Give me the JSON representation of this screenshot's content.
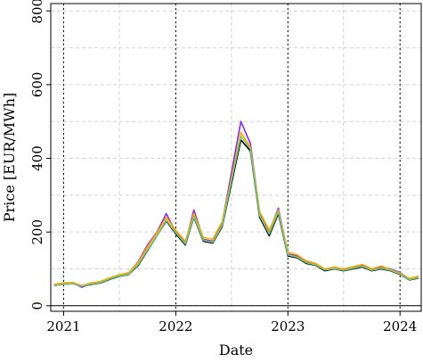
{
  "chart_data": {
    "type": "line",
    "xlabel": "Date",
    "ylabel": "Price [EUR/MWh]",
    "x_range": [
      "2020-11-20",
      "2024-03-10"
    ],
    "ylim": [
      -15,
      820
    ],
    "x_ticks": [
      {
        "date": "2021-01-01",
        "label": "2021"
      },
      {
        "date": "2022-01-01",
        "label": "2022"
      },
      {
        "date": "2023-01-01",
        "label": "2023"
      },
      {
        "date": "2024-01-01",
        "label": "2024"
      }
    ],
    "y_ticks": [
      {
        "value": 0,
        "label": "0"
      },
      {
        "value": 200,
        "label": "200"
      },
      {
        "value": 400,
        "label": "400"
      },
      {
        "value": 600,
        "label": "600"
      },
      {
        "value": 800,
        "label": "800"
      }
    ],
    "grid": true,
    "year_markers": [
      "2021-01-01",
      "2022-01-01",
      "2023-01-01",
      "2024-01-01"
    ],
    "zero_line": true,
    "series": [
      {
        "color": "#000000",
        "points": [
          [
            "2020-12-01",
            55
          ],
          [
            "2021-01-01",
            58
          ],
          [
            "2021-02-01",
            60
          ],
          [
            "2021-03-01",
            52
          ],
          [
            "2021-04-01",
            58
          ],
          [
            "2021-05-01",
            62
          ],
          [
            "2021-06-01",
            72
          ],
          [
            "2021-07-01",
            80
          ],
          [
            "2021-08-01",
            85
          ],
          [
            "2021-09-01",
            110
          ],
          [
            "2021-10-01",
            150
          ],
          [
            "2021-11-01",
            190
          ],
          [
            "2021-12-01",
            230
          ],
          [
            "2022-01-01",
            195
          ],
          [
            "2022-02-01",
            165
          ],
          [
            "2022-03-01",
            240
          ],
          [
            "2022-04-01",
            175
          ],
          [
            "2022-05-01",
            170
          ],
          [
            "2022-06-01",
            215
          ],
          [
            "2022-07-01",
            330
          ],
          [
            "2022-08-01",
            450
          ],
          [
            "2022-09-01",
            420
          ],
          [
            "2022-10-01",
            240
          ],
          [
            "2022-11-01",
            190
          ],
          [
            "2022-12-01",
            250
          ],
          [
            "2023-01-01",
            135
          ],
          [
            "2023-02-01",
            130
          ],
          [
            "2023-03-01",
            115
          ],
          [
            "2023-04-01",
            110
          ],
          [
            "2023-05-01",
            95
          ],
          [
            "2023-06-01",
            100
          ],
          [
            "2023-07-01",
            95
          ],
          [
            "2023-08-01",
            100
          ],
          [
            "2023-09-01",
            105
          ],
          [
            "2023-10-01",
            95
          ],
          [
            "2023-11-01",
            100
          ],
          [
            "2023-12-01",
            95
          ],
          [
            "2024-01-01",
            85
          ],
          [
            "2024-02-01",
            70
          ],
          [
            "2024-03-01",
            75
          ]
        ]
      },
      {
        "color": "#8a2be2",
        "points": [
          [
            "2020-12-01",
            56
          ],
          [
            "2021-01-01",
            60
          ],
          [
            "2021-02-01",
            62
          ],
          [
            "2021-03-01",
            50
          ],
          [
            "2021-04-01",
            60
          ],
          [
            "2021-05-01",
            64
          ],
          [
            "2021-06-01",
            74
          ],
          [
            "2021-07-01",
            82
          ],
          [
            "2021-08-01",
            88
          ],
          [
            "2021-09-01",
            120
          ],
          [
            "2021-10-01",
            165
          ],
          [
            "2021-11-01",
            200
          ],
          [
            "2021-12-01",
            250
          ],
          [
            "2022-01-01",
            200
          ],
          [
            "2022-02-01",
            170
          ],
          [
            "2022-03-01",
            260
          ],
          [
            "2022-04-01",
            180
          ],
          [
            "2022-05-01",
            175
          ],
          [
            "2022-06-01",
            225
          ],
          [
            "2022-07-01",
            360
          ],
          [
            "2022-08-01",
            500
          ],
          [
            "2022-09-01",
            440
          ],
          [
            "2022-10-01",
            250
          ],
          [
            "2022-11-01",
            200
          ],
          [
            "2022-12-01",
            265
          ],
          [
            "2023-01-01",
            140
          ],
          [
            "2023-02-01",
            135
          ],
          [
            "2023-03-01",
            118
          ],
          [
            "2023-04-01",
            112
          ],
          [
            "2023-05-01",
            98
          ],
          [
            "2023-06-01",
            102
          ],
          [
            "2023-07-01",
            97
          ],
          [
            "2023-08-01",
            103
          ],
          [
            "2023-09-01",
            110
          ],
          [
            "2023-10-01",
            98
          ],
          [
            "2023-11-01",
            105
          ],
          [
            "2023-12-01",
            100
          ],
          [
            "2024-01-01",
            90
          ],
          [
            "2024-02-01",
            72
          ],
          [
            "2024-03-01",
            78
          ]
        ]
      },
      {
        "color": "#ffa500",
        "points": [
          [
            "2020-12-01",
            58
          ],
          [
            "2021-01-01",
            62
          ],
          [
            "2021-02-01",
            63
          ],
          [
            "2021-03-01",
            55
          ],
          [
            "2021-04-01",
            62
          ],
          [
            "2021-05-01",
            66
          ],
          [
            "2021-06-01",
            76
          ],
          [
            "2021-07-01",
            84
          ],
          [
            "2021-08-01",
            90
          ],
          [
            "2021-09-01",
            118
          ],
          [
            "2021-10-01",
            160
          ],
          [
            "2021-11-01",
            198
          ],
          [
            "2021-12-01",
            240
          ],
          [
            "2022-01-01",
            205
          ],
          [
            "2022-02-01",
            175
          ],
          [
            "2022-03-01",
            250
          ],
          [
            "2022-04-01",
            185
          ],
          [
            "2022-05-01",
            180
          ],
          [
            "2022-06-01",
            228
          ],
          [
            "2022-07-01",
            345
          ],
          [
            "2022-08-01",
            470
          ],
          [
            "2022-09-01",
            430
          ],
          [
            "2022-10-01",
            255
          ],
          [
            "2022-11-01",
            205
          ],
          [
            "2022-12-01",
            260
          ],
          [
            "2023-01-01",
            145
          ],
          [
            "2023-02-01",
            138
          ],
          [
            "2023-03-01",
            122
          ],
          [
            "2023-04-01",
            115
          ],
          [
            "2023-05-01",
            100
          ],
          [
            "2023-06-01",
            105
          ],
          [
            "2023-07-01",
            100
          ],
          [
            "2023-08-01",
            106
          ],
          [
            "2023-09-01",
            112
          ],
          [
            "2023-10-01",
            100
          ],
          [
            "2023-11-01",
            108
          ],
          [
            "2023-12-01",
            98
          ],
          [
            "2024-01-01",
            88
          ],
          [
            "2024-02-01",
            74
          ],
          [
            "2024-03-01",
            80
          ]
        ]
      },
      {
        "color": "#77c77c",
        "points": [
          [
            "2020-12-01",
            54
          ],
          [
            "2021-01-01",
            58
          ],
          [
            "2021-02-01",
            60
          ],
          [
            "2021-03-01",
            53
          ],
          [
            "2021-04-01",
            59
          ],
          [
            "2021-05-01",
            63
          ],
          [
            "2021-06-01",
            73
          ],
          [
            "2021-07-01",
            81
          ],
          [
            "2021-08-01",
            86
          ],
          [
            "2021-09-01",
            112
          ],
          [
            "2021-10-01",
            152
          ],
          [
            "2021-11-01",
            190
          ],
          [
            "2021-12-01",
            232
          ],
          [
            "2022-01-01",
            198
          ],
          [
            "2022-02-01",
            168
          ],
          [
            "2022-03-01",
            242
          ],
          [
            "2022-04-01",
            178
          ],
          [
            "2022-05-01",
            172
          ],
          [
            "2022-06-01",
            218
          ],
          [
            "2022-07-01",
            338
          ],
          [
            "2022-08-01",
            460
          ],
          [
            "2022-09-01",
            425
          ],
          [
            "2022-10-01",
            245
          ],
          [
            "2022-11-01",
            195
          ],
          [
            "2022-12-01",
            255
          ],
          [
            "2023-01-01",
            138
          ],
          [
            "2023-02-01",
            132
          ],
          [
            "2023-03-01",
            117
          ],
          [
            "2023-04-01",
            111
          ],
          [
            "2023-05-01",
            97
          ],
          [
            "2023-06-01",
            101
          ],
          [
            "2023-07-01",
            96
          ],
          [
            "2023-08-01",
            102
          ],
          [
            "2023-09-01",
            107
          ],
          [
            "2023-10-01",
            96
          ],
          [
            "2023-11-01",
            102
          ],
          [
            "2023-12-01",
            96
          ],
          [
            "2024-01-01",
            86
          ],
          [
            "2024-02-01",
            71
          ],
          [
            "2024-03-01",
            76
          ]
        ]
      }
    ]
  }
}
